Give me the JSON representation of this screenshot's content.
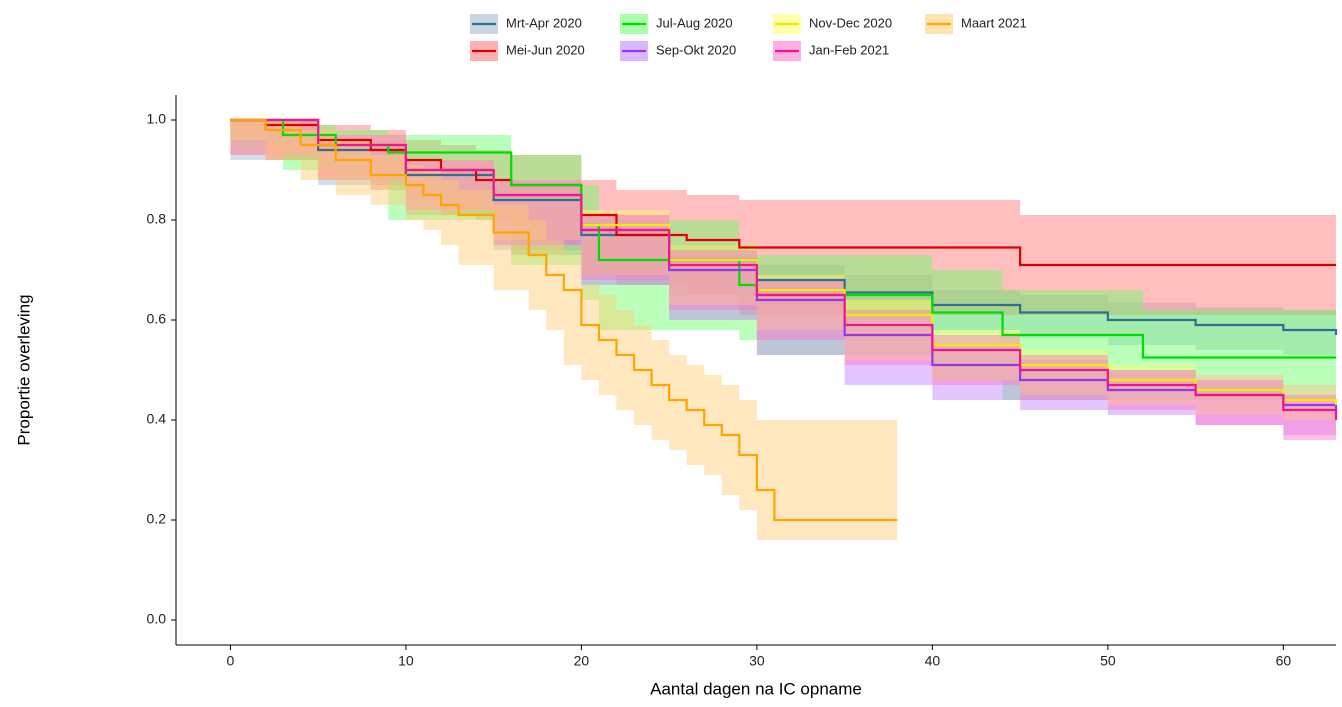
{
  "chart_data": {
    "type": "step",
    "x_label": "Aantal dagen na IC opname",
    "y_label": "Proportie overleving",
    "xlim": [
      -3.1,
      63
    ],
    "ylim": [
      -0.05,
      1.05
    ],
    "xticks": [
      0,
      10,
      20,
      30,
      40,
      50,
      60
    ],
    "yticks": [
      {
        "value": 0,
        "label": "0.0"
      },
      0.2,
      0.4,
      0.6,
      0.8,
      {
        "value": 1,
        "label": "1.0"
      }
    ],
    "series": [
      {
        "name": "Mrt-Apr 2020",
        "color": "#2f6f8f",
        "band_color": "#9fb6cc",
        "x": [
          0,
          5,
          10,
          15,
          20,
          25,
          30,
          35,
          40,
          45,
          50,
          55,
          60,
          63
        ],
        "values": [
          1.0,
          0.94,
          0.89,
          0.84,
          0.77,
          0.72,
          0.68,
          0.655,
          0.63,
          0.615,
          0.6,
          0.59,
          0.58,
          0.57
        ],
        "lower": [
          1.0,
          0.92,
          0.87,
          0.81,
          0.74,
          0.69,
          0.65,
          0.62,
          0.6,
          0.58,
          0.565,
          0.55,
          0.54,
          0.53
        ],
        "upper": [
          1.0,
          0.96,
          0.91,
          0.87,
          0.8,
          0.75,
          0.71,
          0.69,
          0.66,
          0.65,
          0.635,
          0.625,
          0.62,
          0.61
        ]
      },
      {
        "name": "Mei-Jun 2020",
        "color": "#dd0000",
        "band_color": "#ff7070",
        "x": [
          0,
          2,
          5,
          8,
          10,
          12,
          14,
          16,
          20,
          22,
          26,
          29,
          45,
          63
        ],
        "values": [
          1.0,
          0.99,
          0.96,
          0.94,
          0.92,
          0.9,
          0.88,
          0.87,
          0.81,
          0.77,
          0.76,
          0.745,
          0.71,
          0.71
        ],
        "lower": [
          1.0,
          0.97,
          0.92,
          0.89,
          0.86,
          0.84,
          0.81,
          0.8,
          0.73,
          0.69,
          0.67,
          0.65,
          0.61,
          0.61
        ],
        "upper": [
          1.0,
          1.0,
          0.99,
          0.98,
          0.96,
          0.95,
          0.94,
          0.93,
          0.88,
          0.86,
          0.85,
          0.84,
          0.81,
          0.81
        ]
      },
      {
        "name": "Jul-Aug 2020",
        "color": "#00dd00",
        "band_color": "#66ff66",
        "x": [
          0,
          3,
          6,
          9,
          16,
          20,
          21,
          29,
          30,
          40,
          44,
          52,
          63
        ],
        "values": [
          1.0,
          0.97,
          0.95,
          0.935,
          0.87,
          0.79,
          0.72,
          0.67,
          0.65,
          0.615,
          0.57,
          0.525,
          0.525
        ],
        "lower": [
          1.0,
          0.94,
          0.9,
          0.88,
          0.8,
          0.71,
          0.64,
          0.58,
          0.56,
          0.53,
          0.48,
          0.44,
          0.44
        ],
        "upper": [
          1.0,
          0.99,
          0.98,
          0.97,
          0.93,
          0.87,
          0.8,
          0.75,
          0.73,
          0.7,
          0.66,
          0.62,
          0.62
        ]
      },
      {
        "name": "Sep-Okt 2020",
        "color": "#9933ee",
        "band_color": "#c080ff",
        "x": [
          0,
          5,
          10,
          15,
          20,
          25,
          30,
          35,
          40,
          45,
          50,
          55,
          60,
          63
        ],
        "values": [
          1.0,
          0.95,
          0.9,
          0.85,
          0.78,
          0.7,
          0.64,
          0.57,
          0.51,
          0.48,
          0.46,
          0.45,
          0.43,
          0.41
        ],
        "lower": [
          1.0,
          0.93,
          0.88,
          0.82,
          0.75,
          0.67,
          0.6,
          0.53,
          0.47,
          0.44,
          0.42,
          0.41,
          0.39,
          0.37
        ],
        "upper": [
          1.0,
          0.97,
          0.92,
          0.88,
          0.81,
          0.73,
          0.68,
          0.61,
          0.55,
          0.52,
          0.5,
          0.49,
          0.47,
          0.45
        ]
      },
      {
        "name": "Nov-Dec 2020",
        "color": "#eeee00",
        "band_color": "#ffff66",
        "x": [
          0,
          5,
          10,
          15,
          20,
          25,
          30,
          35,
          40,
          45,
          50,
          55,
          60,
          63
        ],
        "values": [
          1.0,
          0.95,
          0.9,
          0.85,
          0.79,
          0.72,
          0.66,
          0.61,
          0.55,
          0.51,
          0.48,
          0.46,
          0.44,
          0.43
        ],
        "lower": [
          1.0,
          0.93,
          0.88,
          0.82,
          0.76,
          0.69,
          0.63,
          0.58,
          0.52,
          0.48,
          0.45,
          0.43,
          0.41,
          0.4
        ],
        "upper": [
          1.0,
          0.97,
          0.92,
          0.88,
          0.82,
          0.75,
          0.69,
          0.64,
          0.58,
          0.54,
          0.51,
          0.49,
          0.47,
          0.46
        ]
      },
      {
        "name": "Jan-Feb 2021",
        "color": "#ee1493",
        "band_color": "#ff70c8",
        "x": [
          0,
          5,
          10,
          15,
          20,
          25,
          30,
          35,
          40,
          45,
          50,
          55,
          60,
          63
        ],
        "values": [
          1.0,
          0.95,
          0.9,
          0.85,
          0.78,
          0.71,
          0.65,
          0.59,
          0.54,
          0.5,
          0.47,
          0.45,
          0.42,
          0.4
        ],
        "lower": [
          1.0,
          0.93,
          0.88,
          0.82,
          0.75,
          0.68,
          0.62,
          0.56,
          0.51,
          0.47,
          0.44,
          0.42,
          0.39,
          0.36
        ],
        "upper": [
          1.0,
          0.97,
          0.92,
          0.88,
          0.81,
          0.74,
          0.68,
          0.62,
          0.57,
          0.53,
          0.5,
          0.48,
          0.45,
          0.43
        ]
      },
      {
        "name": "Maart 2021",
        "color": "#ffa500",
        "band_color": "#ffcc70",
        "x": [
          0,
          2,
          4,
          6,
          8,
          10,
          11,
          12,
          13,
          15,
          17,
          18,
          19,
          20,
          21,
          22,
          23,
          24,
          25,
          26,
          27,
          28,
          29,
          30,
          31,
          38
        ],
        "values": [
          1.0,
          0.98,
          0.95,
          0.92,
          0.89,
          0.87,
          0.85,
          0.83,
          0.81,
          0.775,
          0.73,
          0.69,
          0.66,
          0.59,
          0.56,
          0.53,
          0.5,
          0.47,
          0.44,
          0.42,
          0.39,
          0.37,
          0.33,
          0.26,
          0.2,
          0.2
        ],
        "lower": [
          1.0,
          0.96,
          0.92,
          0.88,
          0.85,
          0.83,
          0.8,
          0.78,
          0.75,
          0.71,
          0.66,
          0.62,
          0.58,
          0.51,
          0.48,
          0.45,
          0.42,
          0.39,
          0.36,
          0.34,
          0.31,
          0.29,
          0.25,
          0.22,
          0.16,
          0.16
        ],
        "upper": [
          1.0,
          1.0,
          0.98,
          0.96,
          0.93,
          0.91,
          0.9,
          0.88,
          0.86,
          0.83,
          0.8,
          0.76,
          0.73,
          0.67,
          0.65,
          0.62,
          0.59,
          0.56,
          0.53,
          0.51,
          0.49,
          0.47,
          0.44,
          0.4,
          0.4,
          0.4
        ]
      }
    ]
  }
}
